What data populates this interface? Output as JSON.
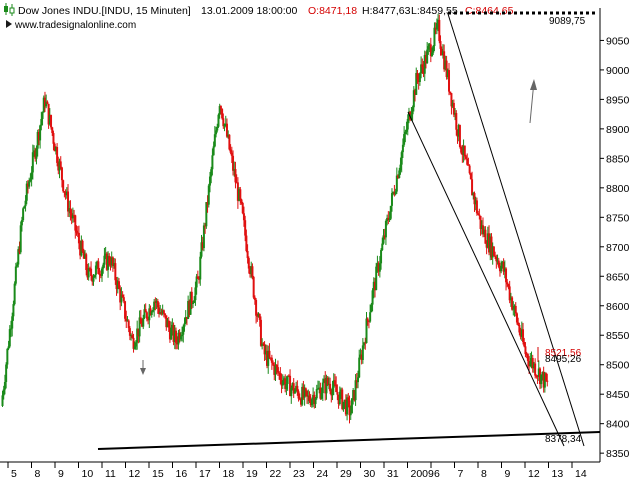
{
  "header": {
    "symbol": "Dow Jones INDU.[INDU, 15 Minuten]",
    "datetime": "13.01.2009 18:00:00",
    "open": "O:8471,18",
    "high": "H:8477,63",
    "low": "L:8459,55",
    "close": "C:8464,65"
  },
  "watermark": "www.tradesignalonline.com",
  "colors": {
    "up": "#1a8a1a",
    "down": "#e01010",
    "background": "#ffffff",
    "grid": "#000000"
  },
  "chart_data": {
    "type": "candlestick",
    "interval": "15 Minuten",
    "ylim": [
      8335,
      9105
    ],
    "y_ticks": [
      "9050",
      "9000",
      "8950",
      "8900",
      "8850",
      "8800",
      "8750",
      "8700",
      "8650",
      "8600",
      "8550",
      "8500",
      "8450",
      "8400",
      "8350"
    ],
    "y_tick_values": [
      9050,
      9000,
      8950,
      8900,
      8850,
      8800,
      8750,
      8700,
      8650,
      8600,
      8550,
      8500,
      8450,
      8400,
      8350
    ],
    "x_ticks": [
      "5",
      "8",
      "9",
      "10",
      "11",
      "12",
      "15",
      "16",
      "17",
      "18",
      "19",
      "22",
      "23",
      "24",
      "29",
      "30",
      "31",
      "2009",
      "6",
      "7",
      "8",
      "9",
      "12",
      "13",
      "14"
    ],
    "price_path": [
      {
        "day": "5",
        "close": 8430
      },
      {
        "day": "8",
        "close": 8760
      },
      {
        "day": "8",
        "close": 8950
      },
      {
        "day": "9",
        "close": 8780
      },
      {
        "day": "10",
        "close": 8650
      },
      {
        "day": "11",
        "close": 8680
      },
      {
        "day": "11",
        "close": 8540
      },
      {
        "day": "12",
        "close": 8610
      },
      {
        "day": "15",
        "close": 8540
      },
      {
        "day": "16",
        "close": 8640
      },
      {
        "day": "17",
        "close": 8950
      },
      {
        "day": "18",
        "close": 8760
      },
      {
        "day": "19",
        "close": 8520
      },
      {
        "day": "22",
        "close": 8470
      },
      {
        "day": "23",
        "close": 8440
      },
      {
        "day": "24",
        "close": 8470
      },
      {
        "day": "29",
        "close": 8420
      },
      {
        "day": "30",
        "close": 8620
      },
      {
        "day": "31",
        "close": 8800
      },
      {
        "day": "2009",
        "close": 8980
      },
      {
        "day": "6",
        "close": 9070
      },
      {
        "day": "7",
        "close": 8880
      },
      {
        "day": "8",
        "close": 8730
      },
      {
        "day": "9",
        "close": 8660
      },
      {
        "day": "12",
        "close": 8520
      },
      {
        "day": "13",
        "close": 8465
      }
    ],
    "levels": [
      {
        "label": "9089,75",
        "value": 9089.75,
        "style": "dotted"
      },
      {
        "label": "8521,56",
        "value": 8521.56,
        "color": "red"
      },
      {
        "label": "8495,26",
        "value": 8495.26
      },
      {
        "label": "8378,34",
        "value": 8378.34
      }
    ]
  }
}
